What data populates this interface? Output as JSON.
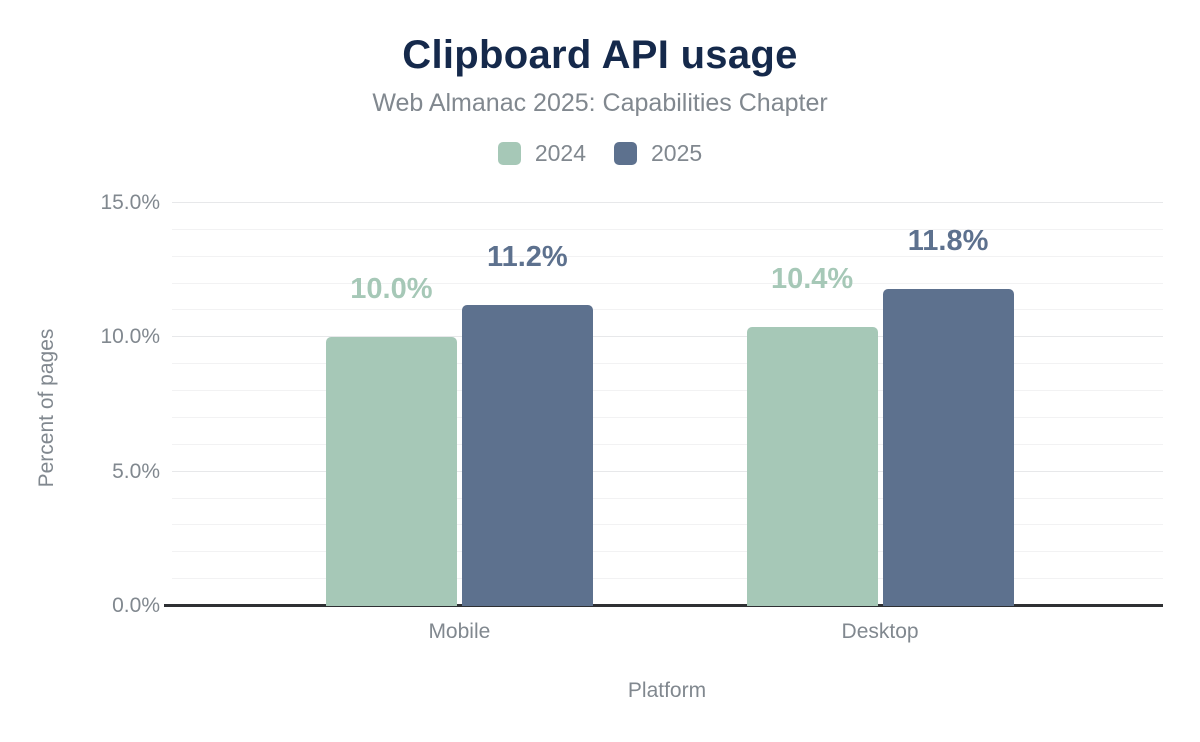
{
  "chart_data": {
    "type": "bar",
    "title": "Clipboard API usage",
    "subtitle": "Web Almanac 2025: Capabilities Chapter",
    "categories": [
      "Mobile",
      "Desktop"
    ],
    "series": [
      {
        "name": "2024",
        "color": "#a6c8b7",
        "values": [
          10.0,
          10.4
        ],
        "labels": [
          "10.0%",
          "10.4%"
        ]
      },
      {
        "name": "2025",
        "color": "#5d718e",
        "values": [
          11.2,
          11.8
        ],
        "labels": [
          "11.2%",
          "11.8%"
        ]
      }
    ],
    "xlabel": "Platform",
    "ylabel": "Percent of pages",
    "ylim": [
      0,
      15
    ],
    "yticks": [
      {
        "value": 0,
        "label": "0.0%"
      },
      {
        "value": 5,
        "label": "5.0%"
      },
      {
        "value": 10,
        "label": "10.0%"
      },
      {
        "value": 15,
        "label": "15.0%"
      }
    ],
    "grid": {
      "show": true,
      "minor_step": 1,
      "major_step": 5
    },
    "legend_position": "top",
    "legend": [
      "2024",
      "2025"
    ]
  },
  "colors": {
    "title": "#15294b",
    "muted_text": "#81888f",
    "axis_line": "#2e3033",
    "grid_minor": "#f2f2f3",
    "grid_major": "#e7e8ea",
    "series_2024": "#a6c8b7",
    "series_2025": "#5d718e",
    "background": "#ffffff"
  }
}
